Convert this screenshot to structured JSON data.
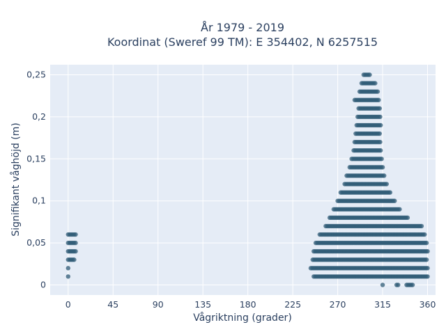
{
  "chart_data": {
    "type": "scatter",
    "title_lines": [
      "År 1979 - 2019",
      "Koordinat (Sweref 99 TM): E 354402, N 6257515"
    ],
    "xlabel": "Vågriktning (grader)",
    "ylabel": "Signifikant våghöjd (m)",
    "xlim": [
      -18,
      368
    ],
    "ylim": [
      -0.012,
      0.262
    ],
    "xticks": [
      0,
      45,
      90,
      135,
      180,
      225,
      270,
      315,
      360
    ],
    "xtick_labels": [
      "0",
      "45",
      "90",
      "135",
      "180",
      "225",
      "270",
      "315",
      "360"
    ],
    "yticks": [
      0,
      0.05,
      0.1,
      0.15,
      0.2,
      0.25
    ],
    "ytick_labels": [
      "0",
      "0,05",
      "0,1",
      "0,15",
      "0,2",
      "0,25"
    ],
    "grid": true,
    "marker_color": "#2f5b75",
    "plot_bg": "#e5ecf6",
    "series": [
      {
        "rows": [
          {
            "y": 0.0,
            "segments": [
              [
                315,
                315
              ],
              [
                329,
                331
              ],
              [
                339,
                345
              ]
            ]
          },
          {
            "y": 0.01,
            "segments": [
              [
                0,
                1
              ],
              [
                246,
                360
              ]
            ]
          },
          {
            "y": 0.02,
            "segments": [
              [
                0,
                1
              ],
              [
                243,
                360
              ]
            ]
          },
          {
            "y": 0.03,
            "segments": [
              [
                0,
                7
              ],
              [
                245,
                360
              ]
            ]
          },
          {
            "y": 0.04,
            "segments": [
              [
                0,
                8
              ],
              [
                246,
                360
              ]
            ]
          },
          {
            "y": 0.05,
            "segments": [
              [
                0,
                8
              ],
              [
                248,
                360
              ]
            ]
          },
          {
            "y": 0.06,
            "segments": [
              [
                0,
                8
              ],
              [
                252,
                357
              ]
            ]
          },
          {
            "y": 0.07,
            "segments": [
              [
                258,
                354
              ]
            ]
          },
          {
            "y": 0.08,
            "segments": [
              [
                262,
                341
              ]
            ]
          },
          {
            "y": 0.09,
            "segments": [
              [
                266,
                333
              ]
            ]
          },
          {
            "y": 0.1,
            "segments": [
              [
                270,
                328
              ]
            ]
          },
          {
            "y": 0.11,
            "segments": [
              [
                273,
                323
              ]
            ]
          },
          {
            "y": 0.12,
            "segments": [
              [
                277,
                319
              ]
            ]
          },
          {
            "y": 0.13,
            "segments": [
              [
                279,
                317
              ]
            ]
          },
          {
            "y": 0.14,
            "segments": [
              [
                282,
                315
              ]
            ]
          },
          {
            "y": 0.15,
            "segments": [
              [
                284,
                314
              ]
            ]
          },
          {
            "y": 0.16,
            "segments": [
              [
                286,
                313
              ]
            ]
          },
          {
            "y": 0.17,
            "segments": [
              [
                287,
                313
              ]
            ]
          },
          {
            "y": 0.18,
            "segments": [
              [
                288,
                313
              ]
            ]
          },
          {
            "y": 0.19,
            "segments": [
              [
                289,
                313
              ]
            ]
          },
          {
            "y": 0.2,
            "segments": [
              [
                290,
                313
              ]
            ]
          },
          {
            "y": 0.21,
            "segments": [
              [
                291,
                313
              ]
            ]
          },
          {
            "y": 0.22,
            "segments": [
              [
                287,
                312
              ]
            ]
          },
          {
            "y": 0.23,
            "segments": [
              [
                292,
                310
              ]
            ]
          },
          {
            "y": 0.24,
            "segments": [
              [
                294,
                308
              ]
            ]
          },
          {
            "y": 0.25,
            "segments": [
              [
                296,
                303
              ]
            ]
          }
        ]
      }
    ]
  }
}
